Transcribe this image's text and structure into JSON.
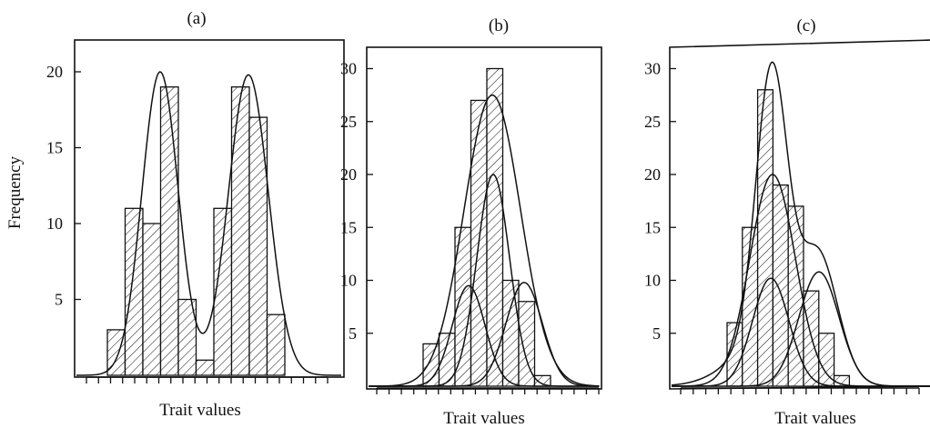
{
  "chart_data": [
    {
      "type": "bar",
      "title": "(a)",
      "xlabel": "Trait values",
      "ylabel": "Frequency",
      "ylim": [
        0,
        24
      ],
      "yticks": [
        5,
        10,
        15,
        20
      ],
      "values": [
        3,
        11,
        10,
        19,
        5,
        1,
        11,
        19,
        17,
        4
      ],
      "bar_start_index": 0,
      "fitted_curve": "bimodal mixture of two normal components"
    },
    {
      "type": "bar",
      "title": "(b)",
      "xlabel": "Trait values",
      "ylabel": "",
      "ylim": [
        0,
        33
      ],
      "yticks": [
        5,
        10,
        15,
        20,
        25,
        30
      ],
      "values": [
        4,
        5,
        15,
        27,
        30,
        10,
        8,
        1
      ],
      "fitted_curve": "unimodal mixture of three normal components"
    },
    {
      "type": "bar",
      "title": "(c)",
      "xlabel": "Trait values",
      "ylabel": "",
      "ylim": [
        0,
        33
      ],
      "yticks": [
        5,
        10,
        15,
        20,
        25,
        30
      ],
      "values": [
        6,
        15,
        28,
        19,
        17,
        9,
        5,
        1
      ],
      "fitted_curve": "unimodal mixture of three normal components"
    }
  ]
}
